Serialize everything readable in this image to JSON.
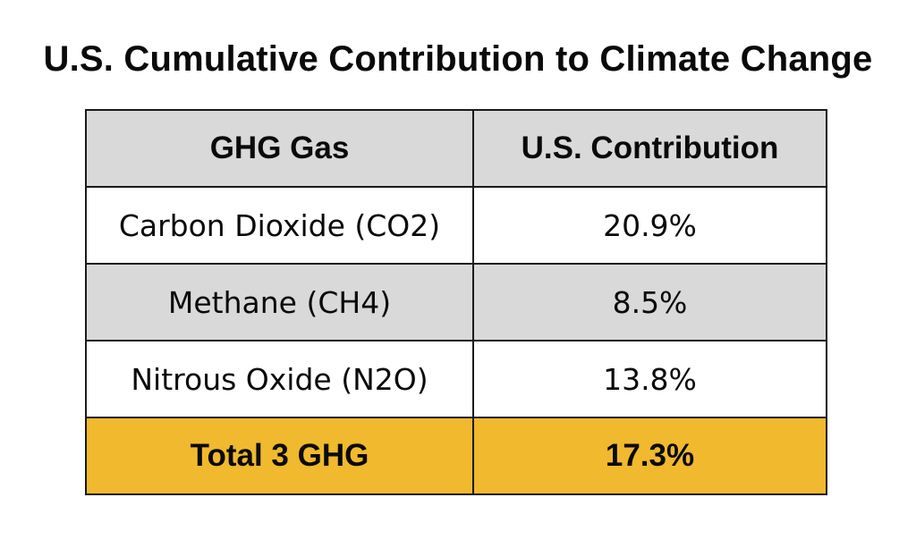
{
  "title": "U.S. Cumulative Contribution to Climate Change",
  "colors": {
    "header_bg": "#d9d9d9",
    "alt_row_bg": "#d9d9d9",
    "plain_row_bg": "#ffffff",
    "total_row_bg": "#f0b92e",
    "border": "#1a1a1a"
  },
  "chart_data": {
    "type": "table",
    "title": "U.S. Cumulative Contribution to Climate Change",
    "columns": [
      "GHG Gas",
      "U.S. Contribution"
    ],
    "rows": [
      {
        "gas": "Carbon Dioxide (CO2)",
        "contribution": "20.9%"
      },
      {
        "gas": "Methane (CH4)",
        "contribution": "8.5%"
      },
      {
        "gas": "Nitrous Oxide (N2O)",
        "contribution": "13.8%"
      }
    ],
    "total": {
      "gas": "Total 3 GHG",
      "contribution": "17.3%"
    }
  }
}
